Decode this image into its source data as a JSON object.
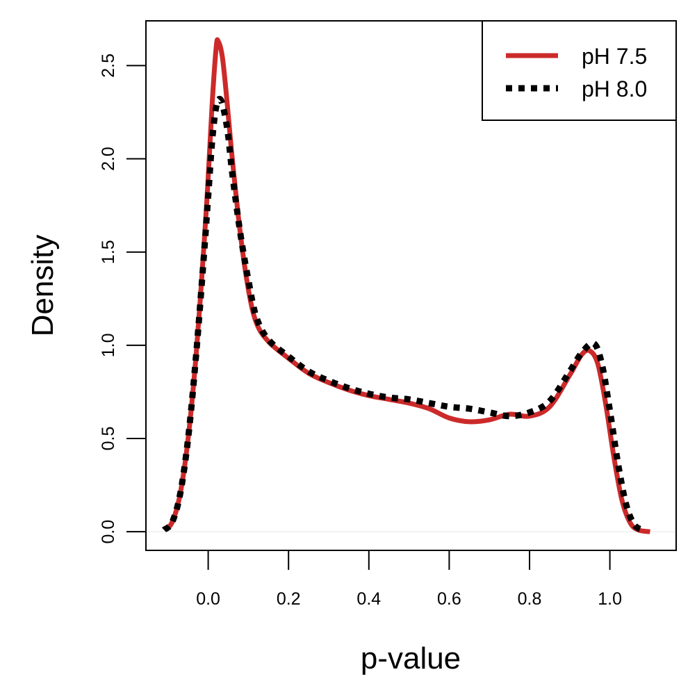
{
  "chart_data": {
    "type": "line",
    "title": "",
    "xlabel": "p-value",
    "ylabel": "Density",
    "xlim": [
      -0.155,
      1.165
    ],
    "ylim": [
      -0.1,
      2.74
    ],
    "x_ticks": [
      0.0,
      0.2,
      0.4,
      0.6,
      0.8,
      1.0
    ],
    "x_tick_labels": [
      "0.0",
      "0.2",
      "0.4",
      "0.6",
      "0.8",
      "1.0"
    ],
    "y_ticks": [
      0.0,
      0.5,
      1.0,
      1.5,
      2.0,
      2.5
    ],
    "y_tick_labels": [
      "0.0",
      "0.5",
      "1.0",
      "1.5",
      "2.0",
      "2.5"
    ],
    "grid": false,
    "legend_position": "top-right",
    "series": [
      {
        "name": "pH 7.5",
        "color": "#cc2a2a",
        "style": "solid",
        "points": [
          [
            -0.11,
            0.01
          ],
          [
            -0.09,
            0.05
          ],
          [
            -0.07,
            0.2
          ],
          [
            -0.05,
            0.5
          ],
          [
            -0.03,
            0.95
          ],
          [
            -0.01,
            1.55
          ],
          [
            0.0,
            1.9
          ],
          [
            0.01,
            2.3
          ],
          [
            0.02,
            2.6
          ],
          [
            0.025,
            2.63
          ],
          [
            0.035,
            2.55
          ],
          [
            0.045,
            2.35
          ],
          [
            0.06,
            2.0
          ],
          [
            0.08,
            1.6
          ],
          [
            0.1,
            1.3
          ],
          [
            0.12,
            1.12
          ],
          [
            0.15,
            1.02
          ],
          [
            0.2,
            0.93
          ],
          [
            0.25,
            0.85
          ],
          [
            0.3,
            0.8
          ],
          [
            0.35,
            0.76
          ],
          [
            0.4,
            0.73
          ],
          [
            0.45,
            0.71
          ],
          [
            0.5,
            0.69
          ],
          [
            0.55,
            0.66
          ],
          [
            0.6,
            0.61
          ],
          [
            0.65,
            0.59
          ],
          [
            0.7,
            0.6
          ],
          [
            0.75,
            0.63
          ],
          [
            0.8,
            0.62
          ],
          [
            0.85,
            0.67
          ],
          [
            0.9,
            0.84
          ],
          [
            0.93,
            0.95
          ],
          [
            0.95,
            0.97
          ],
          [
            0.97,
            0.9
          ],
          [
            0.99,
            0.68
          ],
          [
            1.01,
            0.4
          ],
          [
            1.03,
            0.17
          ],
          [
            1.05,
            0.05
          ],
          [
            1.07,
            0.01
          ],
          [
            1.1,
            0.0
          ]
        ]
      },
      {
        "name": "pH 8.0",
        "color": "#000000",
        "style": "dashed",
        "points": [
          [
            -0.11,
            0.01
          ],
          [
            -0.09,
            0.05
          ],
          [
            -0.07,
            0.2
          ],
          [
            -0.05,
            0.5
          ],
          [
            -0.03,
            0.95
          ],
          [
            -0.01,
            1.5
          ],
          [
            0.0,
            1.8
          ],
          [
            0.01,
            2.1
          ],
          [
            0.02,
            2.28
          ],
          [
            0.03,
            2.32
          ],
          [
            0.04,
            2.25
          ],
          [
            0.05,
            2.12
          ],
          [
            0.06,
            1.92
          ],
          [
            0.08,
            1.6
          ],
          [
            0.1,
            1.35
          ],
          [
            0.12,
            1.15
          ],
          [
            0.15,
            1.03
          ],
          [
            0.2,
            0.94
          ],
          [
            0.25,
            0.86
          ],
          [
            0.3,
            0.81
          ],
          [
            0.35,
            0.77
          ],
          [
            0.4,
            0.74
          ],
          [
            0.45,
            0.72
          ],
          [
            0.5,
            0.71
          ],
          [
            0.55,
            0.69
          ],
          [
            0.6,
            0.67
          ],
          [
            0.65,
            0.66
          ],
          [
            0.7,
            0.64
          ],
          [
            0.75,
            0.62
          ],
          [
            0.8,
            0.64
          ],
          [
            0.85,
            0.7
          ],
          [
            0.9,
            0.86
          ],
          [
            0.93,
            0.96
          ],
          [
            0.96,
            1.01
          ],
          [
            0.98,
            0.9
          ],
          [
            1.0,
            0.65
          ],
          [
            1.02,
            0.37
          ],
          [
            1.04,
            0.15
          ],
          [
            1.06,
            0.04
          ],
          [
            1.08,
            0.01
          ]
        ]
      }
    ]
  }
}
